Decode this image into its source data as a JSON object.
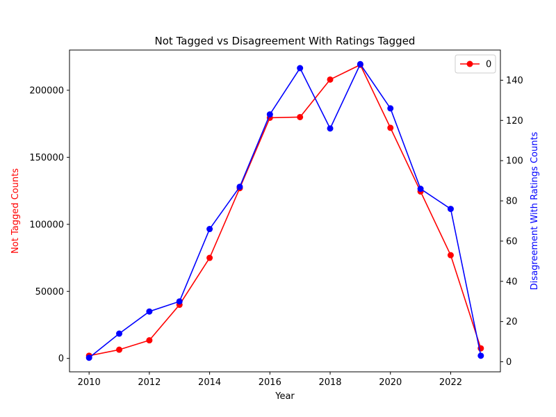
{
  "chart_data": {
    "type": "line",
    "title": "Not Tagged vs Disagreement With Ratings Tagged",
    "xlabel": "Year",
    "x": [
      2010,
      2011,
      2012,
      2013,
      2014,
      2015,
      2016,
      2017,
      2018,
      2019,
      2020,
      2021,
      2022,
      2023
    ],
    "xlim": [
      2009.35,
      2023.65
    ],
    "xticks": [
      2010,
      2012,
      2014,
      2016,
      2018,
      2020,
      2022
    ],
    "left_axis": {
      "label": "Not Tagged Counts",
      "color": "#ff0000",
      "ylim": [
        -10000,
        230000
      ],
      "ticks": [
        0,
        50000,
        100000,
        150000,
        200000
      ]
    },
    "right_axis": {
      "label": "Disagreement With Ratings Counts",
      "color": "#0000ff",
      "ylim": [
        -5,
        155
      ],
      "ticks": [
        0,
        20,
        40,
        60,
        80,
        100,
        120,
        140
      ]
    },
    "series": [
      {
        "name": "0",
        "axis": "left",
        "color": "#ff0000",
        "values": [
          2000,
          6500,
          13500,
          40000,
          75000,
          127000,
          179500,
          180000,
          208000,
          219000,
          172000,
          124500,
          77000,
          7500
        ]
      },
      {
        "axis": "right",
        "color": "#0000ff",
        "values": [
          2,
          14,
          25,
          30,
          66,
          87,
          123,
          146,
          116,
          148,
          126,
          86,
          76,
          3
        ]
      }
    ],
    "legend": {
      "position": "top-right",
      "entries": [
        "0"
      ]
    },
    "grid": false
  }
}
